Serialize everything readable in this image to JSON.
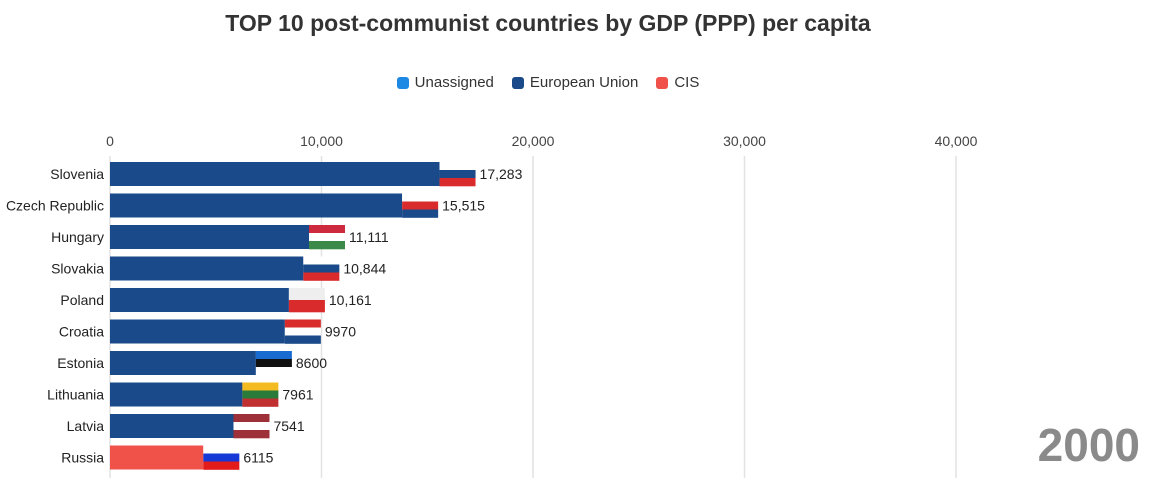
{
  "chart_data": {
    "type": "bar",
    "title": "TOP 10 post-communist countries by GDP (PPP) per capita",
    "year": "2000",
    "xlim": [
      0,
      46000
    ],
    "xticks": [
      0,
      10000,
      20000,
      30000,
      40000
    ],
    "xtick_labels": [
      "0",
      "10,000",
      "20,000",
      "30,000",
      "40,000"
    ],
    "legend": [
      {
        "name": "Unassigned",
        "color": "#1e88e5"
      },
      {
        "name": "European Union",
        "color": "#1a4a8a"
      },
      {
        "name": "CIS",
        "color": "#f0524a"
      }
    ],
    "categories": [
      "Slovenia",
      "Czech Republic",
      "Hungary",
      "Slovakia",
      "Poland",
      "Croatia",
      "Estonia",
      "Lithuania",
      "Latvia",
      "Russia"
    ],
    "values": [
      17283,
      15515,
      11111,
      10844,
      10161,
      9970,
      8600,
      7961,
      7541,
      6115
    ],
    "value_labels": [
      "17,283",
      "15,515",
      "11,111",
      "10,844",
      "10,161",
      "9970",
      "8600",
      "7961",
      "7541",
      "6115"
    ],
    "groups": [
      "European Union",
      "European Union",
      "European Union",
      "European Union",
      "European Union",
      "European Union",
      "European Union",
      "European Union",
      "European Union",
      "CIS"
    ],
    "flags": [
      [
        "#ffffff",
        "#1a4a8a",
        "#d92b2b"
      ],
      [
        "#ffffff",
        "#d92b2b",
        "#1a4a8a"
      ],
      [
        "#cd2a3e",
        "#ffffff",
        "#3c8a4a"
      ],
      [
        "#ffffff",
        "#1a4a8a",
        "#d92b2b"
      ],
      [
        "#eeeeee",
        "#d92b2b"
      ],
      [
        "#d92b2b",
        "#ffffff",
        "#1a4a8a"
      ],
      [
        "#1a6bd1",
        "#111111",
        "#ffffff"
      ],
      [
        "#f3bb20",
        "#2a7a3a",
        "#c03030"
      ],
      [
        "#9e3039",
        "#ffffff",
        "#9e3039"
      ],
      [
        "#ffffff",
        "#1538d6",
        "#e31b1b"
      ]
    ]
  }
}
